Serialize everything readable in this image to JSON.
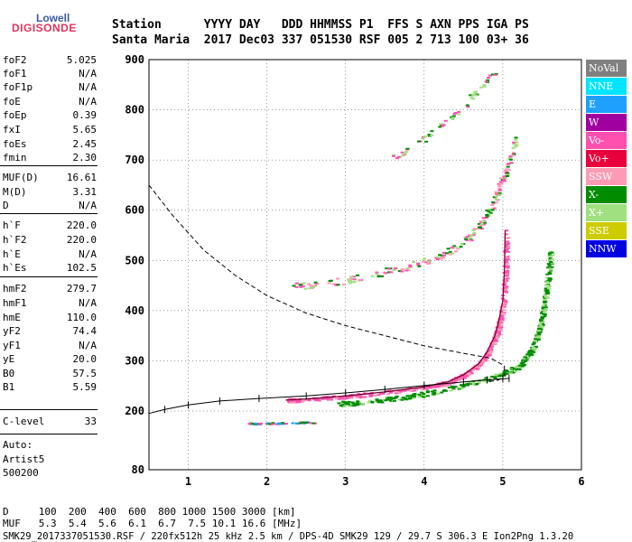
{
  "logo": {
    "line1": "Lowell",
    "line2": "DIGISONDE"
  },
  "header": {
    "row1": "Station      YYYY DAY   DDD HHMMSS P1  FFS S AXN PPS IGA PS",
    "row2": "Santa Maria  2017 Dec03 337 051530 RSF 005 2 713 100 03+ 36"
  },
  "params": [
    {
      "name": "foF2",
      "value": "5.025"
    },
    {
      "name": "foF1",
      "value": "N/A"
    },
    {
      "name": "foF1p",
      "value": "N/A"
    },
    {
      "name": "foE",
      "value": "N/A"
    },
    {
      "name": "foEp",
      "value": "0.39"
    },
    {
      "name": "fxI",
      "value": "5.65"
    },
    {
      "name": "foEs",
      "value": "2.45"
    },
    {
      "name": "fmin",
      "value": "2.30"
    },
    {
      "name": "MUF(D)",
      "value": "16.61"
    },
    {
      "name": "M(D)",
      "value": "3.31"
    },
    {
      "name": "D",
      "value": "N/A"
    },
    {
      "name": "h`F",
      "value": "220.0"
    },
    {
      "name": "h`F2",
      "value": "220.0"
    },
    {
      "name": "h`E",
      "value": "N/A"
    },
    {
      "name": "h`Es",
      "value": "102.5"
    },
    {
      "name": "hmF2",
      "value": "279.7"
    },
    {
      "name": "hmF1",
      "value": "N/A"
    },
    {
      "name": "hmE",
      "value": "110.0"
    },
    {
      "name": "yF2",
      "value": "74.4"
    },
    {
      "name": "yF1",
      "value": "N/A"
    },
    {
      "name": "yE",
      "value": "20.0"
    },
    {
      "name": "B0",
      "value": "57.5"
    },
    {
      "name": "B1",
      "value": "5.59"
    },
    {
      "name": "C-level",
      "value": "33"
    }
  ],
  "auto": {
    "line1": "Auto:",
    "line2": "Artist5",
    "line3": "500200"
  },
  "legend": [
    {
      "label": "NoVal",
      "color": "#808080"
    },
    {
      "label": "NNE",
      "color": "#00e5ff"
    },
    {
      "label": "E",
      "color": "#1ea0ff"
    },
    {
      "label": "W",
      "color": "#a000a0"
    },
    {
      "label": "Vo-",
      "color": "#ff50b0"
    },
    {
      "label": "Vo+",
      "color": "#e8003c"
    },
    {
      "label": "SSW",
      "color": "#ff9ab4"
    },
    {
      "label": "X-",
      "color": "#008c00"
    },
    {
      "label": "X+",
      "color": "#a0e080"
    },
    {
      "label": "SSE",
      "color": "#cccc00"
    },
    {
      "label": "NNW",
      "color": "#0000e0"
    }
  ],
  "footer": {
    "row1": "D     100  200  400  600  800 1000 1500 3000 [km]",
    "row2": "MUF   5.3  5.4  5.6  6.1  6.7  7.5 10.1 16.6 [MHz]",
    "row3": "SMK29_2017337051530.RSF / 220fx512h 25 kHz 2.5 km / DPS-4D SMK29 129 / 29.7 S 306.3 E Ion2Png 1.3.20"
  },
  "chart_data": {
    "type": "scatter",
    "title": "",
    "xlabel": "",
    "ylabel": "",
    "xlim": [
      0.5,
      6.0
    ],
    "ylim": [
      80,
      900
    ],
    "xticks": [
      1,
      2,
      3,
      4,
      5,
      6
    ],
    "yticks": [
      80,
      200,
      300,
      400,
      500,
      600,
      700,
      800,
      900
    ],
    "grid": true,
    "ordinary_trace": [
      [
        2.25,
        222
      ],
      [
        2.5,
        224
      ],
      [
        3.0,
        230
      ],
      [
        3.5,
        238
      ],
      [
        4.0,
        248
      ],
      [
        4.3,
        258
      ],
      [
        4.5,
        272
      ],
      [
        4.7,
        295
      ],
      [
        4.8,
        318
      ],
      [
        4.9,
        350
      ],
      [
        4.95,
        380
      ],
      [
        5.0,
        420
      ],
      [
        5.02,
        480
      ],
      [
        5.03,
        560
      ]
    ],
    "extraordinary_trace": [
      [
        2.9,
        215
      ],
      [
        3.3,
        220
      ],
      [
        3.8,
        230
      ],
      [
        4.3,
        245
      ],
      [
        4.8,
        265
      ],
      [
        5.2,
        290
      ],
      [
        5.35,
        320
      ],
      [
        5.45,
        360
      ],
      [
        5.5,
        400
      ],
      [
        5.55,
        450
      ],
      [
        5.6,
        520
      ]
    ],
    "f2_second_hop": [
      [
        2.3,
        448
      ],
      [
        2.8,
        458
      ],
      [
        3.3,
        470
      ],
      [
        3.8,
        490
      ],
      [
        4.2,
        510
      ],
      [
        4.5,
        540
      ],
      [
        4.7,
        570
      ],
      [
        4.85,
        610
      ],
      [
        4.95,
        650
      ],
      [
        5.05,
        690
      ],
      [
        5.15,
        740
      ]
    ],
    "f2_third_hop": [
      [
        3.55,
        700
      ],
      [
        3.9,
        735
      ],
      [
        4.2,
        770
      ],
      [
        4.5,
        810
      ],
      [
        4.7,
        845
      ],
      [
        4.9,
        880
      ]
    ],
    "es_layer": [
      [
        1.75,
        175
      ],
      [
        2.0,
        176
      ],
      [
        2.3,
        177
      ],
      [
        2.6,
        178
      ]
    ],
    "edp_profile": [
      [
        0.5,
        195
      ],
      [
        0.7,
        203
      ],
      [
        1.0,
        212
      ],
      [
        1.4,
        220
      ],
      [
        1.9,
        225
      ],
      [
        2.5,
        230
      ],
      [
        3.0,
        236
      ],
      [
        3.5,
        243
      ],
      [
        4.0,
        251
      ],
      [
        4.5,
        258
      ],
      [
        4.8,
        262
      ],
      [
        5.0,
        264
      ],
      [
        5.08,
        265
      ]
    ],
    "model_profile": [
      [
        0.5,
        650
      ],
      [
        0.8,
        590
      ],
      [
        1.2,
        520
      ],
      [
        1.6,
        470
      ],
      [
        2.0,
        430
      ],
      [
        2.5,
        395
      ],
      [
        3.0,
        370
      ],
      [
        3.5,
        350
      ],
      [
        4.0,
        330
      ],
      [
        4.5,
        315
      ],
      [
        4.85,
        305
      ],
      [
        5.02,
        290
      ],
      [
        5.02,
        272
      ],
      [
        4.95,
        262
      ],
      [
        4.8,
        258
      ]
    ]
  }
}
